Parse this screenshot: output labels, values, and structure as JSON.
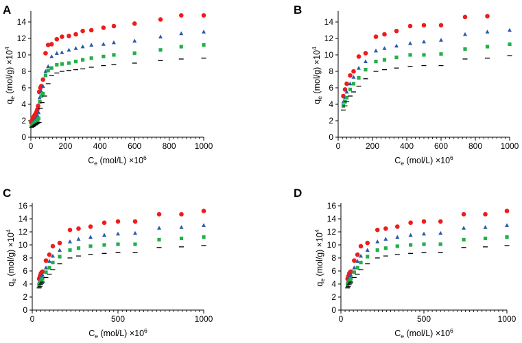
{
  "chart_data": [
    {
      "panel": "A",
      "type": "scatter",
      "xlabel": "Ce (mol/L) ×10^6",
      "ylabel": "qe (mol/g) ×10^4",
      "xlim": [
        0,
        1000
      ],
      "ylim": [
        0,
        15
      ],
      "xticks": [
        0,
        200,
        400,
        600,
        800,
        1000
      ],
      "yticks": [
        0,
        2,
        4,
        6,
        8,
        10,
        12,
        14
      ],
      "series": [
        {
          "name": "red circles",
          "marker": "circle",
          "color": "#ee1c1c",
          "x": [
            2,
            5,
            8,
            10,
            12,
            15,
            18,
            20,
            23,
            26,
            29,
            32,
            35,
            38,
            42,
            48,
            55,
            60,
            70,
            85,
            100,
            120,
            150,
            180,
            220,
            260,
            300,
            350,
            420,
            480,
            600,
            750,
            870,
            1000
          ],
          "y": [
            1.8,
            2.0,
            2.1,
            2.2,
            2.3,
            2.4,
            2.5,
            2.6,
            2.7,
            2.8,
            2.9,
            3.0,
            3.2,
            3.4,
            3.8,
            5.5,
            6.0,
            6.2,
            7.0,
            10.2,
            11.2,
            11.3,
            11.9,
            12.2,
            12.3,
            12.5,
            12.9,
            13.0,
            13.3,
            13.5,
            13.8,
            14.3,
            14.8,
            14.8
          ]
        },
        {
          "name": "blue triangles",
          "marker": "triangle",
          "color": "#2a5aa8",
          "x": [
            3,
            8,
            12,
            16,
            20,
            24,
            28,
            32,
            36,
            40,
            45,
            50,
            60,
            70,
            85,
            100,
            120,
            150,
            180,
            220,
            260,
            300,
            350,
            420,
            480,
            600,
            750,
            870,
            1000
          ],
          "y": [
            1.5,
            1.7,
            1.8,
            1.9,
            2.0,
            2.1,
            2.2,
            2.3,
            2.4,
            2.6,
            3.0,
            4.8,
            5.6,
            6.2,
            8.0,
            8.6,
            9.8,
            10.2,
            10.3,
            10.6,
            10.8,
            11.0,
            11.2,
            11.3,
            11.5,
            11.7,
            12.2,
            12.6,
            12.8
          ]
        },
        {
          "name": "green squares",
          "marker": "square",
          "color": "#22b04a",
          "x": [
            4,
            10,
            15,
            20,
            25,
            30,
            35,
            40,
            45,
            52,
            60,
            70,
            85,
            100,
            120,
            150,
            180,
            220,
            260,
            300,
            350,
            420,
            480,
            600,
            750,
            870,
            1000
          ],
          "y": [
            1.4,
            1.5,
            1.6,
            1.7,
            1.8,
            1.9,
            2.0,
            2.1,
            2.3,
            4.3,
            5.0,
            5.3,
            7.5,
            8.1,
            8.4,
            8.8,
            8.9,
            9.0,
            9.2,
            9.4,
            9.6,
            9.8,
            10.0,
            10.2,
            10.6,
            11.0,
            11.2
          ]
        },
        {
          "name": "black dashes",
          "marker": "dash",
          "color": "#000000",
          "x": [
            5,
            12,
            18,
            25,
            32,
            40,
            48,
            55,
            65,
            80,
            100,
            120,
            150,
            180,
            220,
            260,
            300,
            350,
            420,
            480,
            600,
            750,
            870,
            1000
          ],
          "y": [
            1.2,
            1.3,
            1.4,
            1.5,
            1.6,
            1.7,
            1.8,
            3.5,
            4.2,
            5.0,
            6.5,
            7.5,
            7.8,
            8.0,
            8.1,
            8.2,
            8.3,
            8.5,
            8.7,
            8.8,
            9.0,
            9.3,
            9.5,
            9.6
          ]
        }
      ]
    },
    {
      "panel": "B",
      "type": "scatter",
      "xlabel": "Ce (mol/L) ×10^6",
      "ylabel": "qe (mol/g) ×10^4",
      "xlim": [
        0,
        1000
      ],
      "ylim": [
        0,
        15
      ],
      "xticks": [
        0,
        200,
        400,
        600,
        800,
        1000
      ],
      "yticks": [
        0,
        2,
        4,
        6,
        8,
        10,
        12,
        14
      ],
      "series": [
        {
          "name": "red circles",
          "marker": "circle",
          "color": "#ee1c1c",
          "x": [
            30,
            40,
            50,
            70,
            90,
            120,
            160,
            220,
            270,
            340,
            420,
            500,
            600,
            740,
            870
          ],
          "y": [
            5.0,
            5.8,
            6.5,
            7.5,
            8.0,
            9.8,
            10.2,
            12.2,
            12.5,
            12.9,
            13.5,
            13.6,
            13.6,
            14.6,
            14.7
          ]
        },
        {
          "name": "blue triangles",
          "marker": "triangle",
          "color": "#2a5aa8",
          "x": [
            30,
            40,
            50,
            70,
            90,
            120,
            160,
            220,
            270,
            340,
            420,
            500,
            600,
            740,
            870,
            1000
          ],
          "y": [
            4.3,
            4.8,
            5.5,
            6.5,
            7.3,
            8.4,
            9.2,
            10.5,
            10.8,
            11.1,
            11.4,
            11.6,
            11.8,
            12.5,
            12.8,
            13.0
          ]
        },
        {
          "name": "green squares",
          "marker": "square",
          "color": "#22b04a",
          "x": [
            30,
            40,
            50,
            70,
            90,
            120,
            160,
            220,
            270,
            340,
            420,
            500,
            600,
            740,
            870,
            1000
          ],
          "y": [
            3.8,
            4.3,
            4.8,
            5.8,
            6.5,
            7.2,
            8.2,
            9.2,
            9.4,
            9.7,
            10.0,
            10.0,
            10.1,
            10.7,
            11.0,
            11.3
          ]
        },
        {
          "name": "black dashes",
          "marker": "dash",
          "color": "#000000",
          "x": [
            30,
            40,
            50,
            70,
            90,
            120,
            160,
            220,
            270,
            340,
            420,
            500,
            600,
            740,
            870,
            1000
          ],
          "y": [
            3.3,
            3.8,
            4.3,
            5.0,
            5.5,
            6.2,
            7.1,
            8.0,
            8.2,
            8.4,
            8.6,
            8.7,
            8.7,
            9.5,
            9.6,
            9.9
          ]
        }
      ]
    },
    {
      "panel": "C",
      "type": "scatter",
      "xlabel": "Ce (mol/L) ×10^6",
      "ylabel": "qe (mol/g) ×10^4",
      "xlim": [
        0,
        1000
      ],
      "ylim": [
        0,
        16
      ],
      "xticks": [
        0,
        500,
        1000
      ],
      "yticks": [
        0,
        2,
        4,
        6,
        8,
        10,
        12,
        14,
        16
      ],
      "series": [
        {
          "name": "red circles",
          "marker": "circle",
          "color": "#ee1c1c",
          "x": [
            40,
            45,
            50,
            55,
            60,
            80,
            100,
            120,
            160,
            220,
            270,
            340,
            420,
            500,
            600,
            740,
            870,
            1000
          ],
          "y": [
            4.8,
            5.2,
            5.6,
            5.8,
            5.9,
            7.6,
            8.5,
            9.8,
            10.3,
            12.3,
            12.5,
            12.8,
            13.4,
            13.6,
            13.6,
            14.7,
            14.7,
            15.2
          ]
        },
        {
          "name": "blue triangles",
          "marker": "triangle",
          "color": "#2a5aa8",
          "x": [
            40,
            45,
            50,
            55,
            60,
            80,
            100,
            120,
            160,
            220,
            270,
            340,
            420,
            500,
            600,
            740,
            870,
            1000
          ],
          "y": [
            4.3,
            4.6,
            4.9,
            5.2,
            5.4,
            6.5,
            7.5,
            8.3,
            9.2,
            10.5,
            10.9,
            11.2,
            11.5,
            11.7,
            11.8,
            12.6,
            12.7,
            13.0
          ]
        },
        {
          "name": "green squares",
          "marker": "square",
          "color": "#22b04a",
          "x": [
            40,
            45,
            50,
            55,
            60,
            80,
            100,
            120,
            160,
            220,
            270,
            340,
            420,
            500,
            600,
            740,
            870,
            1000
          ],
          "y": [
            3.8,
            4.1,
            4.4,
            4.6,
            4.8,
            5.8,
            6.5,
            7.3,
            8.2,
            9.2,
            9.5,
            9.8,
            10.0,
            10.1,
            10.1,
            10.8,
            11.0,
            11.2
          ]
        },
        {
          "name": "black dashes",
          "marker": "dash",
          "color": "#000000",
          "x": [
            40,
            45,
            50,
            55,
            60,
            80,
            100,
            120,
            160,
            220,
            270,
            340,
            420,
            500,
            600,
            740,
            870,
            1000
          ],
          "y": [
            3.4,
            3.6,
            3.9,
            4.1,
            4.3,
            5.0,
            5.5,
            6.2,
            7.1,
            8.0,
            8.3,
            8.5,
            8.7,
            8.8,
            8.8,
            9.6,
            9.7,
            9.9
          ]
        }
      ]
    },
    {
      "panel": "D",
      "type": "scatter",
      "xlabel": "Ce (mol/L) ×10^6",
      "ylabel": "qe (mol/g) ×10^4",
      "xlim": [
        0,
        1000
      ],
      "ylim": [
        0,
        16
      ],
      "xticks": [
        0,
        500,
        1000
      ],
      "yticks": [
        0,
        2,
        4,
        6,
        8,
        10,
        12,
        14,
        16
      ],
      "series": [
        {
          "name": "red circles",
          "marker": "circle",
          "color": "#ee1c1c",
          "x": [
            40,
            45,
            50,
            55,
            60,
            80,
            100,
            120,
            160,
            220,
            270,
            340,
            420,
            500,
            600,
            740,
            870,
            1000
          ],
          "y": [
            4.8,
            5.2,
            5.6,
            5.8,
            5.9,
            7.6,
            8.5,
            9.8,
            10.3,
            12.3,
            12.5,
            12.8,
            13.4,
            13.6,
            13.6,
            14.7,
            14.7,
            15.2
          ]
        },
        {
          "name": "blue triangles",
          "marker": "triangle",
          "color": "#2a5aa8",
          "x": [
            40,
            45,
            50,
            55,
            60,
            80,
            100,
            120,
            160,
            220,
            270,
            340,
            420,
            500,
            600,
            740,
            870,
            1000
          ],
          "y": [
            4.3,
            4.6,
            4.9,
            5.2,
            5.4,
            6.5,
            7.5,
            8.3,
            9.2,
            10.5,
            10.9,
            11.2,
            11.5,
            11.7,
            11.8,
            12.6,
            12.7,
            13.0
          ]
        },
        {
          "name": "green squares",
          "marker": "square",
          "color": "#22b04a",
          "x": [
            40,
            45,
            50,
            55,
            60,
            80,
            100,
            120,
            160,
            220,
            270,
            340,
            420,
            500,
            600,
            740,
            870,
            1000
          ],
          "y": [
            3.8,
            4.1,
            4.4,
            4.6,
            4.8,
            5.8,
            6.5,
            7.3,
            8.2,
            9.2,
            9.5,
            9.8,
            10.0,
            10.1,
            10.1,
            10.8,
            11.0,
            11.2
          ]
        },
        {
          "name": "black dashes",
          "marker": "dash",
          "color": "#000000",
          "x": [
            40,
            45,
            50,
            55,
            60,
            80,
            100,
            120,
            160,
            220,
            270,
            340,
            420,
            500,
            600,
            740,
            870,
            1000
          ],
          "y": [
            3.4,
            3.6,
            3.9,
            4.1,
            4.3,
            5.0,
            5.5,
            6.2,
            7.1,
            8.0,
            8.3,
            8.5,
            8.7,
            8.8,
            8.8,
            9.6,
            9.7,
            9.9
          ]
        }
      ]
    }
  ],
  "axis_text": {
    "x_main": "C",
    "x_sub": "e",
    "x_rest": " (mol/L) ×10",
    "x_exp": "6",
    "y_main": "q",
    "y_sub": "e",
    "y_rest": " (mol/g) ×10",
    "y_exp": "4"
  }
}
